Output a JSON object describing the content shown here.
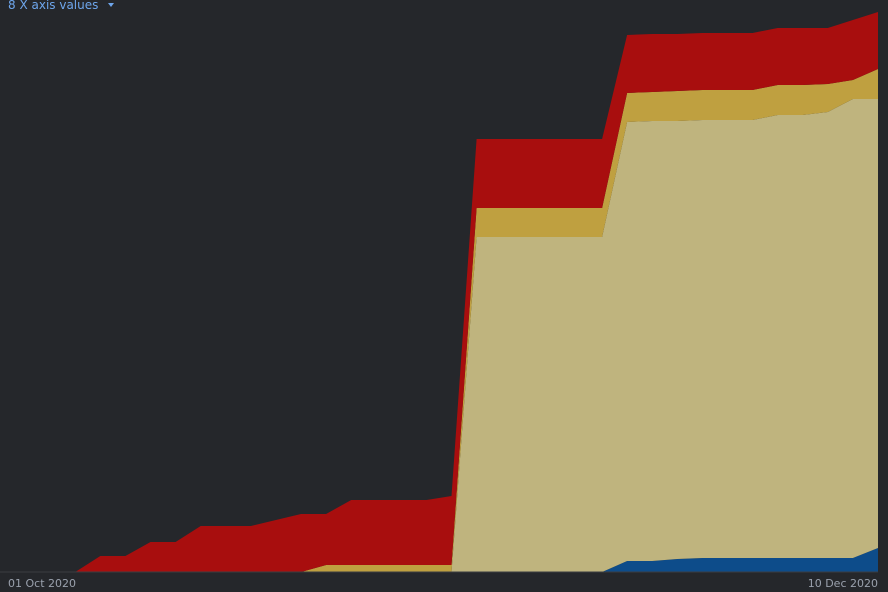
{
  "header": {
    "control": "8 X axis values"
  },
  "chart_data": {
    "type": "area",
    "stacked": true,
    "categories": [
      "01 Oct 2020",
      null,
      null,
      null,
      null,
      null,
      null,
      null,
      null,
      null,
      null,
      null,
      null,
      null,
      null,
      null,
      null,
      null,
      null,
      null,
      null,
      null,
      null,
      null,
      null,
      null,
      null,
      null,
      null,
      null,
      null,
      null,
      null,
      null,
      null,
      "10 Dec 2020"
    ],
    "series": [
      {
        "color": "#0d4c8a",
        "values": [
          0,
          0,
          0,
          0,
          0,
          0,
          0,
          0,
          0,
          0,
          0,
          0,
          0,
          0,
          0,
          0,
          0,
          0,
          0,
          0,
          0,
          0,
          0,
          0,
          0,
          11,
          11,
          13,
          14,
          14,
          14,
          14,
          14,
          14,
          14,
          24
        ]
      },
      {
        "color": "#bfb47e",
        "values": [
          0,
          0,
          0,
          0,
          0,
          0,
          0,
          0,
          0,
          0,
          0,
          0,
          0,
          0,
          0,
          0,
          0,
          0,
          0,
          335,
          335,
          335,
          335,
          335,
          335,
          439,
          440,
          438,
          438,
          438,
          438,
          443,
          443,
          446,
          459,
          449
        ]
      },
      {
        "color": "#bfa040",
        "values": [
          0,
          0,
          0,
          0,
          0,
          0,
          0,
          0,
          0,
          0,
          0,
          0,
          0,
          7,
          7,
          7,
          7,
          7,
          7,
          29,
          29,
          29,
          29,
          29,
          29,
          29,
          29,
          30,
          30,
          30,
          30,
          30,
          30,
          28,
          19,
          30
        ]
      },
      {
        "color": "#a80e0e",
        "values": [
          0,
          0,
          0,
          0,
          16,
          16,
          30,
          30,
          46,
          46,
          46,
          52,
          58,
          51,
          65,
          65,
          65,
          65,
          69,
          69,
          69,
          69,
          69,
          69,
          69,
          58,
          58,
          57,
          57,
          57,
          57,
          57,
          57,
          56,
          60,
          57
        ]
      }
    ]
  }
}
